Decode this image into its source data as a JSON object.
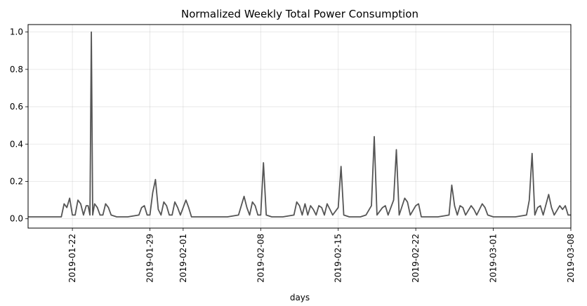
{
  "chart_data": {
    "type": "line",
    "title": "Normalized Weekly Total Power Consumption",
    "xlabel": "days",
    "ylabel": "",
    "x_start": "2019-01-18",
    "x_end": "2019-03-08",
    "ylim": [
      -0.05,
      1.04
    ],
    "yticks": [
      0.0,
      0.2,
      0.4,
      0.6,
      0.8,
      1.0
    ],
    "ytick_labels": [
      "0.0",
      "0.2",
      "0.4",
      "0.6",
      "0.8",
      "1.0"
    ],
    "xticks": [
      "2019-01-22",
      "2019-01-29",
      "2019-02-01",
      "2019-02-08",
      "2019-02-15",
      "2019-02-22",
      "2019-03-01",
      "2019-03-08"
    ],
    "grid": true,
    "legend": "none",
    "colors": {
      "line": "#555555"
    },
    "series": [
      {
        "name": "",
        "values": [
          [
            "2019-01-18",
            0.01
          ],
          [
            "2019-01-19",
            0.01
          ],
          [
            "2019-01-20",
            0.01
          ],
          [
            "2019-01-21",
            0.01
          ],
          [
            "2019-01-21 06:00",
            0.08
          ],
          [
            "2019-01-21 12:00",
            0.06
          ],
          [
            "2019-01-21 18:00",
            0.11
          ],
          [
            "2019-01-22",
            0.02
          ],
          [
            "2019-01-22 06:00",
            0.02
          ],
          [
            "2019-01-22 12:00",
            0.1
          ],
          [
            "2019-01-22 18:00",
            0.08
          ],
          [
            "2019-01-23",
            0.02
          ],
          [
            "2019-01-23 06:00",
            0.07
          ],
          [
            "2019-01-23 10:00",
            0.07
          ],
          [
            "2019-01-23 14:00",
            0.02
          ],
          [
            "2019-01-23 17:00",
            1.0
          ],
          [
            "2019-01-23 20:00",
            0.02
          ],
          [
            "2019-01-24",
            0.08
          ],
          [
            "2019-01-24 06:00",
            0.06
          ],
          [
            "2019-01-24 12:00",
            0.02
          ],
          [
            "2019-01-24 18:00",
            0.02
          ],
          [
            "2019-01-25",
            0.08
          ],
          [
            "2019-01-25 06:00",
            0.06
          ],
          [
            "2019-01-25 12:00",
            0.02
          ],
          [
            "2019-01-26",
            0.01
          ],
          [
            "2019-01-27",
            0.01
          ],
          [
            "2019-01-28",
            0.02
          ],
          [
            "2019-01-28 06:00",
            0.06
          ],
          [
            "2019-01-28 12:00",
            0.07
          ],
          [
            "2019-01-28 18:00",
            0.02
          ],
          [
            "2019-01-29",
            0.02
          ],
          [
            "2019-01-29 06:00",
            0.14
          ],
          [
            "2019-01-29 12:00",
            0.21
          ],
          [
            "2019-01-29 18:00",
            0.05
          ],
          [
            "2019-01-30",
            0.02
          ],
          [
            "2019-01-30 06:00",
            0.09
          ],
          [
            "2019-01-30 12:00",
            0.07
          ],
          [
            "2019-01-30 18:00",
            0.02
          ],
          [
            "2019-01-31",
            0.02
          ],
          [
            "2019-01-31 06:00",
            0.09
          ],
          [
            "2019-01-31 12:00",
            0.06
          ],
          [
            "2019-01-31 18:00",
            0.02
          ],
          [
            "2019-02-01",
            0.06
          ],
          [
            "2019-02-01 06:00",
            0.1
          ],
          [
            "2019-02-01 12:00",
            0.06
          ],
          [
            "2019-02-01 18:00",
            0.01
          ],
          [
            "2019-02-02",
            0.01
          ],
          [
            "2019-02-03",
            0.01
          ],
          [
            "2019-02-04",
            0.01
          ],
          [
            "2019-02-05",
            0.01
          ],
          [
            "2019-02-06",
            0.02
          ],
          [
            "2019-02-06 12:00",
            0.12
          ],
          [
            "2019-02-06 18:00",
            0.06
          ],
          [
            "2019-02-07",
            0.02
          ],
          [
            "2019-02-07 06:00",
            0.09
          ],
          [
            "2019-02-07 12:00",
            0.07
          ],
          [
            "2019-02-07 18:00",
            0.02
          ],
          [
            "2019-02-08",
            0.02
          ],
          [
            "2019-02-08 06:00",
            0.3
          ],
          [
            "2019-02-08 12:00",
            0.02
          ],
          [
            "2019-02-09",
            0.01
          ],
          [
            "2019-02-10",
            0.01
          ],
          [
            "2019-02-11",
            0.02
          ],
          [
            "2019-02-11 06:00",
            0.09
          ],
          [
            "2019-02-11 12:00",
            0.07
          ],
          [
            "2019-02-11 18:00",
            0.02
          ],
          [
            "2019-02-12",
            0.08
          ],
          [
            "2019-02-12 06:00",
            0.02
          ],
          [
            "2019-02-12 12:00",
            0.07
          ],
          [
            "2019-02-12 18:00",
            0.05
          ],
          [
            "2019-02-13",
            0.02
          ],
          [
            "2019-02-13 06:00",
            0.07
          ],
          [
            "2019-02-13 12:00",
            0.06
          ],
          [
            "2019-02-13 18:00",
            0.02
          ],
          [
            "2019-02-14",
            0.08
          ],
          [
            "2019-02-14 06:00",
            0.05
          ],
          [
            "2019-02-14 12:00",
            0.02
          ],
          [
            "2019-02-15",
            0.06
          ],
          [
            "2019-02-15 06:00",
            0.28
          ],
          [
            "2019-02-15 12:00",
            0.02
          ],
          [
            "2019-02-16",
            0.01
          ],
          [
            "2019-02-17",
            0.01
          ],
          [
            "2019-02-17 12:00",
            0.02
          ],
          [
            "2019-02-18",
            0.07
          ],
          [
            "2019-02-18 06:00",
            0.44
          ],
          [
            "2019-02-18 12:00",
            0.02
          ],
          [
            "2019-02-19",
            0.06
          ],
          [
            "2019-02-19 06:00",
            0.07
          ],
          [
            "2019-02-19 12:00",
            0.02
          ],
          [
            "2019-02-20",
            0.1
          ],
          [
            "2019-02-20 06:00",
            0.37
          ],
          [
            "2019-02-20 12:00",
            0.02
          ],
          [
            "2019-02-21",
            0.11
          ],
          [
            "2019-02-21 06:00",
            0.09
          ],
          [
            "2019-02-21 12:00",
            0.02
          ],
          [
            "2019-02-22",
            0.07
          ],
          [
            "2019-02-22 06:00",
            0.08
          ],
          [
            "2019-02-22 12:00",
            0.01
          ],
          [
            "2019-02-23",
            0.01
          ],
          [
            "2019-02-24",
            0.01
          ],
          [
            "2019-02-25",
            0.02
          ],
          [
            "2019-02-25 06:00",
            0.18
          ],
          [
            "2019-02-25 12:00",
            0.07
          ],
          [
            "2019-02-25 18:00",
            0.02
          ],
          [
            "2019-02-26",
            0.07
          ],
          [
            "2019-02-26 06:00",
            0.06
          ],
          [
            "2019-02-26 12:00",
            0.02
          ],
          [
            "2019-02-27",
            0.07
          ],
          [
            "2019-02-27 06:00",
            0.05
          ],
          [
            "2019-02-27 12:00",
            0.02
          ],
          [
            "2019-02-28",
            0.08
          ],
          [
            "2019-02-28 06:00",
            0.06
          ],
          [
            "2019-02-28 12:00",
            0.02
          ],
          [
            "2019-03-01",
            0.01
          ],
          [
            "2019-03-02",
            0.01
          ],
          [
            "2019-03-03",
            0.01
          ],
          [
            "2019-03-04",
            0.02
          ],
          [
            "2019-03-04 06:00",
            0.1
          ],
          [
            "2019-03-04 12:00",
            0.35
          ],
          [
            "2019-03-04 18:00",
            0.02
          ],
          [
            "2019-03-05",
            0.06
          ],
          [
            "2019-03-05 06:00",
            0.07
          ],
          [
            "2019-03-05 12:00",
            0.02
          ],
          [
            "2019-03-06",
            0.13
          ],
          [
            "2019-03-06 06:00",
            0.06
          ],
          [
            "2019-03-06 12:00",
            0.02
          ],
          [
            "2019-03-07",
            0.07
          ],
          [
            "2019-03-07 06:00",
            0.05
          ],
          [
            "2019-03-07 12:00",
            0.07
          ],
          [
            "2019-03-07 18:00",
            0.02
          ],
          [
            "2019-03-08",
            0.02
          ]
        ]
      }
    ]
  }
}
